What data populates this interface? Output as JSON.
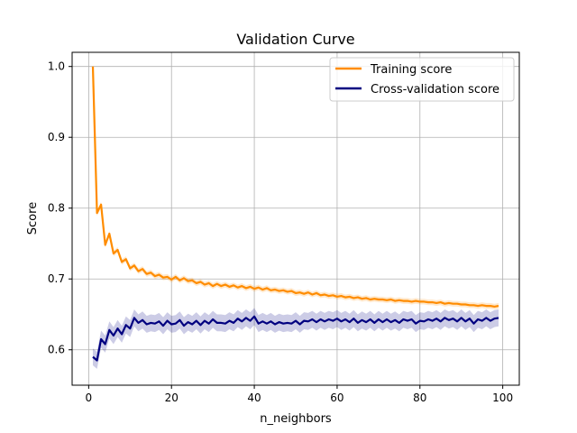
{
  "chart_data": {
    "type": "line",
    "title": "Validation Curve",
    "xlabel": "n_neighbors",
    "ylabel": "Score",
    "xlim": [
      -4,
      104
    ],
    "ylim": [
      0.55,
      1.02
    ],
    "xticks": [
      0,
      20,
      40,
      60,
      80,
      100
    ],
    "yticks": [
      0.6,
      0.7,
      0.8,
      0.9,
      1.0
    ],
    "xtick_labels": [
      "0",
      "20",
      "40",
      "60",
      "80",
      "100"
    ],
    "ytick_labels": [
      "0.6",
      "0.7",
      "0.8",
      "0.9",
      "1.0"
    ],
    "grid": true,
    "legend_position": "top-right",
    "x": [
      1,
      2,
      3,
      4,
      5,
      6,
      7,
      8,
      9,
      10,
      11,
      12,
      13,
      14,
      15,
      16,
      17,
      18,
      19,
      20,
      21,
      22,
      23,
      24,
      25,
      26,
      27,
      28,
      29,
      30,
      31,
      32,
      33,
      34,
      35,
      36,
      37,
      38,
      39,
      40,
      41,
      42,
      43,
      44,
      45,
      46,
      47,
      48,
      49,
      50,
      51,
      52,
      53,
      54,
      55,
      56,
      57,
      58,
      59,
      60,
      61,
      62,
      63,
      64,
      65,
      66,
      67,
      68,
      69,
      70,
      71,
      72,
      73,
      74,
      75,
      76,
      77,
      78,
      79,
      80,
      81,
      82,
      83,
      84,
      85,
      86,
      87,
      88,
      89,
      90,
      91,
      92,
      93,
      94,
      95,
      96,
      97,
      98,
      99
    ],
    "series": [
      {
        "name": "Training score",
        "color": "#ff8c00",
        "values": [
          1.0,
          0.793,
          0.805,
          0.748,
          0.764,
          0.736,
          0.741,
          0.724,
          0.728,
          0.715,
          0.719,
          0.711,
          0.714,
          0.707,
          0.709,
          0.704,
          0.706,
          0.702,
          0.703,
          0.699,
          0.703,
          0.698,
          0.701,
          0.697,
          0.698,
          0.694,
          0.696,
          0.692,
          0.694,
          0.69,
          0.693,
          0.69,
          0.692,
          0.689,
          0.691,
          0.688,
          0.69,
          0.687,
          0.689,
          0.686,
          0.688,
          0.685,
          0.687,
          0.684,
          0.685,
          0.683,
          0.684,
          0.682,
          0.683,
          0.68,
          0.681,
          0.679,
          0.681,
          0.678,
          0.68,
          0.677,
          0.678,
          0.676,
          0.677,
          0.675,
          0.676,
          0.674,
          0.675,
          0.673,
          0.674,
          0.672,
          0.673,
          0.671,
          0.672,
          0.671,
          0.671,
          0.67,
          0.671,
          0.669,
          0.67,
          0.669,
          0.669,
          0.668,
          0.669,
          0.668,
          0.668,
          0.667,
          0.667,
          0.666,
          0.667,
          0.665,
          0.666,
          0.665,
          0.665,
          0.664,
          0.664,
          0.663,
          0.663,
          0.662,
          0.663,
          0.662,
          0.662,
          0.661,
          0.662
        ],
        "band": 0.004
      },
      {
        "name": "Cross-validation score",
        "color": "#000080",
        "values": [
          0.59,
          0.585,
          0.615,
          0.608,
          0.628,
          0.62,
          0.63,
          0.622,
          0.635,
          0.63,
          0.645,
          0.638,
          0.642,
          0.636,
          0.638,
          0.637,
          0.64,
          0.634,
          0.641,
          0.636,
          0.637,
          0.642,
          0.634,
          0.639,
          0.636,
          0.641,
          0.635,
          0.641,
          0.637,
          0.643,
          0.638,
          0.638,
          0.637,
          0.641,
          0.638,
          0.644,
          0.64,
          0.645,
          0.641,
          0.647,
          0.637,
          0.64,
          0.637,
          0.64,
          0.636,
          0.639,
          0.637,
          0.638,
          0.637,
          0.641,
          0.636,
          0.641,
          0.64,
          0.643,
          0.639,
          0.643,
          0.64,
          0.643,
          0.641,
          0.644,
          0.64,
          0.643,
          0.639,
          0.644,
          0.638,
          0.642,
          0.639,
          0.643,
          0.638,
          0.643,
          0.639,
          0.643,
          0.639,
          0.642,
          0.638,
          0.643,
          0.641,
          0.643,
          0.637,
          0.641,
          0.64,
          0.643,
          0.641,
          0.644,
          0.64,
          0.645,
          0.642,
          0.644,
          0.64,
          0.645,
          0.64,
          0.644,
          0.637,
          0.643,
          0.641,
          0.645,
          0.641,
          0.644,
          0.645
        ],
        "band": 0.012
      }
    ]
  }
}
